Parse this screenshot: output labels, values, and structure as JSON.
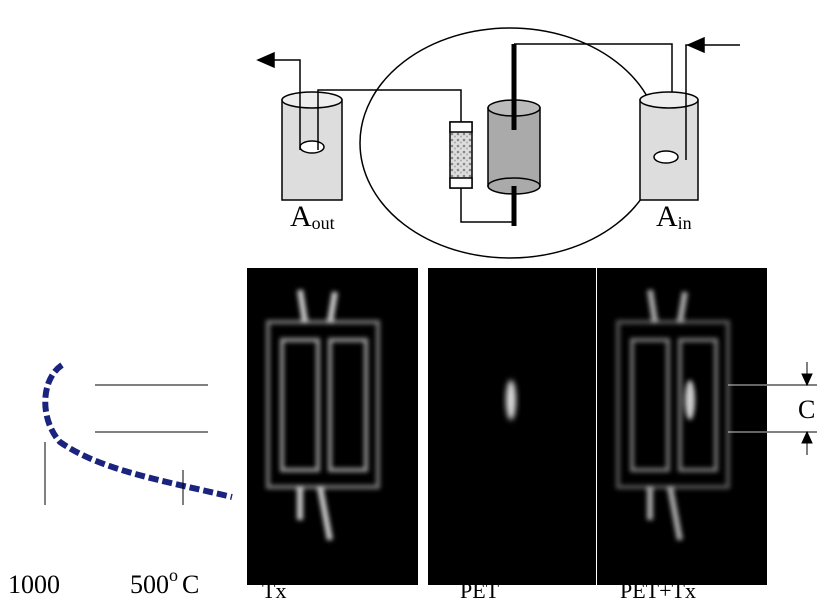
{
  "top": {
    "outlet": {
      "text": "A",
      "subscript": "out"
    },
    "inlet": {
      "text": "A",
      "subscript": "in"
    }
  },
  "scale": {
    "left": "1000",
    "right": "500",
    "degree": "o",
    "unit": "C"
  },
  "panels": [
    {
      "label": "Tx"
    },
    {
      "label": "PET"
    },
    {
      "label": "PET+Tx"
    }
  ],
  "dimension": "C"
}
